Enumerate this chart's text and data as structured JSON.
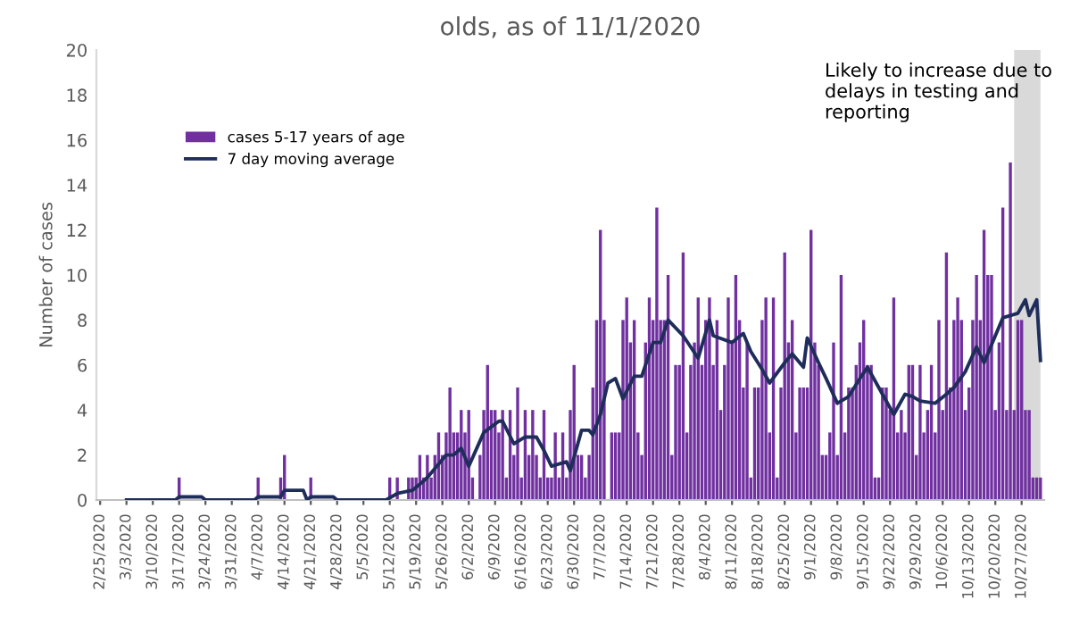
{
  "chart_data": {
    "type": "bar",
    "title": "olds, as of 11/1/2020",
    "ylabel": "Number of cases",
    "annotations": [
      "Likely to increase due to delays in testing and reporting"
    ],
    "x": [
      "2020-02-25",
      "2020-02-26",
      "2020-02-27",
      "2020-02-28",
      "2020-02-29",
      "2020-03-01",
      "2020-03-02",
      "2020-03-03",
      "2020-03-04",
      "2020-03-05",
      "2020-03-06",
      "2020-03-07",
      "2020-03-08",
      "2020-03-09",
      "2020-03-10",
      "2020-03-11",
      "2020-03-12",
      "2020-03-13",
      "2020-03-14",
      "2020-03-15",
      "2020-03-16",
      "2020-03-17",
      "2020-03-18",
      "2020-03-19",
      "2020-03-20",
      "2020-03-21",
      "2020-03-22",
      "2020-03-23",
      "2020-03-24",
      "2020-03-25",
      "2020-03-26",
      "2020-03-27",
      "2020-03-28",
      "2020-03-29",
      "2020-03-30",
      "2020-03-31",
      "2020-04-01",
      "2020-04-02",
      "2020-04-03",
      "2020-04-04",
      "2020-04-05",
      "2020-04-06",
      "2020-04-07",
      "2020-04-08",
      "2020-04-09",
      "2020-04-10",
      "2020-04-11",
      "2020-04-12",
      "2020-04-13",
      "2020-04-14",
      "2020-04-15",
      "2020-04-16",
      "2020-04-17",
      "2020-04-18",
      "2020-04-19",
      "2020-04-20",
      "2020-04-21",
      "2020-04-22",
      "2020-04-23",
      "2020-04-24",
      "2020-04-25",
      "2020-04-26",
      "2020-04-27",
      "2020-04-28",
      "2020-04-29",
      "2020-04-30",
      "2020-05-01",
      "2020-05-02",
      "2020-05-03",
      "2020-05-04",
      "2020-05-05",
      "2020-05-06",
      "2020-05-07",
      "2020-05-08",
      "2020-05-09",
      "2020-05-10",
      "2020-05-11",
      "2020-05-12",
      "2020-05-13",
      "2020-05-14",
      "2020-05-15",
      "2020-05-16",
      "2020-05-17",
      "2020-05-18",
      "2020-05-19",
      "2020-05-20",
      "2020-05-21",
      "2020-05-22",
      "2020-05-23",
      "2020-05-24",
      "2020-05-25",
      "2020-05-26",
      "2020-05-27",
      "2020-05-28",
      "2020-05-29",
      "2020-05-30",
      "2020-05-31",
      "2020-06-01",
      "2020-06-02",
      "2020-06-03",
      "2020-06-04",
      "2020-06-05",
      "2020-06-06",
      "2020-06-07",
      "2020-06-08",
      "2020-06-09",
      "2020-06-10",
      "2020-06-11",
      "2020-06-12",
      "2020-06-13",
      "2020-06-14",
      "2020-06-15",
      "2020-06-16",
      "2020-06-17",
      "2020-06-18",
      "2020-06-19",
      "2020-06-20",
      "2020-06-21",
      "2020-06-22",
      "2020-06-23",
      "2020-06-24",
      "2020-06-25",
      "2020-06-26",
      "2020-06-27",
      "2020-06-28",
      "2020-06-29",
      "2020-06-30",
      "2020-07-01",
      "2020-07-02",
      "2020-07-03",
      "2020-07-04",
      "2020-07-05",
      "2020-07-06",
      "2020-07-07",
      "2020-07-08",
      "2020-07-09",
      "2020-07-10",
      "2020-07-11",
      "2020-07-12",
      "2020-07-13",
      "2020-07-14",
      "2020-07-15",
      "2020-07-16",
      "2020-07-17",
      "2020-07-18",
      "2020-07-19",
      "2020-07-20",
      "2020-07-21",
      "2020-07-22",
      "2020-07-23",
      "2020-07-24",
      "2020-07-25",
      "2020-07-26",
      "2020-07-27",
      "2020-07-28",
      "2020-07-29",
      "2020-07-30",
      "2020-07-31",
      "2020-08-01",
      "2020-08-02",
      "2020-08-03",
      "2020-08-04",
      "2020-08-05",
      "2020-08-06",
      "2020-08-07",
      "2020-08-08",
      "2020-08-09",
      "2020-08-10",
      "2020-08-11",
      "2020-08-12",
      "2020-08-13",
      "2020-08-14",
      "2020-08-15",
      "2020-08-16",
      "2020-08-17",
      "2020-08-18",
      "2020-08-19",
      "2020-08-20",
      "2020-08-21",
      "2020-08-22",
      "2020-08-23",
      "2020-08-24",
      "2020-08-25",
      "2020-08-26",
      "2020-08-27",
      "2020-08-28",
      "2020-08-29",
      "2020-08-30",
      "2020-08-31",
      "2020-09-01",
      "2020-09-02",
      "2020-09-03",
      "2020-09-04",
      "2020-09-05",
      "2020-09-06",
      "2020-09-07",
      "2020-09-08",
      "2020-09-09",
      "2020-09-10",
      "2020-09-11",
      "2020-09-12",
      "2020-09-13",
      "2020-09-14",
      "2020-09-15",
      "2020-09-16",
      "2020-09-17",
      "2020-09-18",
      "2020-09-19",
      "2020-09-20",
      "2020-09-21",
      "2020-09-22",
      "2020-09-23",
      "2020-09-24",
      "2020-09-25",
      "2020-09-26",
      "2020-09-27",
      "2020-09-28",
      "2020-09-29",
      "2020-09-30",
      "2020-10-01",
      "2020-10-02",
      "2020-10-03",
      "2020-10-04",
      "2020-10-05",
      "2020-10-06",
      "2020-10-07",
      "2020-10-08",
      "2020-10-09",
      "2020-10-10",
      "2020-10-11",
      "2020-10-12",
      "2020-10-13",
      "2020-10-14",
      "2020-10-15",
      "2020-10-16",
      "2020-10-17",
      "2020-10-18",
      "2020-10-19",
      "2020-10-20",
      "2020-10-21",
      "2020-10-22",
      "2020-10-23",
      "2020-10-24",
      "2020-10-25",
      "2020-10-26",
      "2020-10-27",
      "2020-10-28",
      "2020-10-29",
      "2020-10-30",
      "2020-10-31",
      "2020-11-01"
    ],
    "series": [
      {
        "name": "cases 5-17 years of age",
        "color": "#7030a0",
        "values": [
          0,
          0,
          0,
          0,
          0,
          0,
          0,
          0,
          0,
          0,
          0,
          0,
          0,
          0,
          0,
          0,
          0,
          0,
          0,
          0,
          0,
          1,
          0,
          0,
          0,
          0,
          0,
          0,
          0,
          0,
          0,
          0,
          0,
          0,
          0,
          0,
          0,
          0,
          0,
          0,
          0,
          0,
          1,
          0,
          0,
          0,
          0,
          0,
          1,
          2,
          0,
          0,
          0,
          0,
          0,
          0,
          1,
          0,
          0,
          0,
          0,
          0,
          0,
          0,
          0,
          0,
          0,
          0,
          0,
          0,
          0,
          0,
          0,
          0,
          0,
          0,
          0,
          1,
          0,
          1,
          0,
          0,
          1,
          1,
          1,
          2,
          1,
          2,
          1,
          2,
          3,
          2,
          3,
          5,
          3,
          3,
          4,
          3,
          4,
          1,
          0,
          2,
          4,
          6,
          4,
          4,
          3,
          4,
          1,
          4,
          2,
          5,
          1,
          4,
          2,
          4,
          2,
          1,
          4,
          1,
          1,
          3,
          1,
          3,
          1,
          4,
          6,
          2,
          2,
          1,
          2,
          5,
          8,
          12,
          8,
          0,
          3,
          3,
          3,
          8,
          9,
          7,
          8,
          3,
          2,
          7,
          9,
          8,
          13,
          8,
          8,
          10,
          2,
          6,
          6,
          11,
          3,
          6,
          7,
          9,
          6,
          8,
          9,
          6,
          8,
          4,
          6,
          9,
          7,
          10,
          8,
          5,
          7,
          1,
          5,
          5,
          8,
          9,
          3,
          9,
          1,
          5,
          11,
          7,
          8,
          3,
          5,
          5,
          5,
          12,
          7,
          6,
          2,
          2,
          3,
          7,
          2,
          10,
          3,
          5,
          5,
          6,
          7,
          8,
          6,
          6,
          1,
          1,
          5,
          5,
          4,
          9,
          3,
          4,
          3,
          6,
          6,
          2,
          6,
          3,
          4,
          6,
          3,
          8,
          4,
          11,
          5,
          8,
          9,
          8,
          4,
          5,
          8,
          10,
          8,
          12,
          10,
          10,
          4,
          7,
          13,
          4,
          15,
          4,
          8,
          8,
          4,
          4,
          1,
          1,
          1
        ]
      },
      {
        "name": "7 day moving average",
        "type": "line",
        "color": "#1f2d5a",
        "x": [
          "2020-03-03",
          "2020-03-16",
          "2020-03-17",
          "2020-03-23",
          "2020-03-24",
          "2020-04-06",
          "2020-04-07",
          "2020-04-13",
          "2020-04-14",
          "2020-04-19",
          "2020-04-20",
          "2020-04-21",
          "2020-04-27",
          "2020-04-28",
          "2020-05-11",
          "2020-05-14",
          "2020-05-18",
          "2020-05-20",
          "2020-05-22",
          "2020-05-24",
          "2020-05-27",
          "2020-05-29",
          "2020-05-31",
          "2020-06-02",
          "2020-06-06",
          "2020-06-10",
          "2020-06-11",
          "2020-06-14",
          "2020-06-17",
          "2020-06-20",
          "2020-06-22",
          "2020-06-24",
          "2020-06-28",
          "2020-06-29",
          "2020-07-02",
          "2020-07-04",
          "2020-07-05",
          "2020-07-07",
          "2020-07-09",
          "2020-07-11",
          "2020-07-13",
          "2020-07-16",
          "2020-07-18",
          "2020-07-21",
          "2020-07-23",
          "2020-07-25",
          "2020-07-29",
          "2020-08-02",
          "2020-08-05",
          "2020-08-06",
          "2020-08-11",
          "2020-08-14",
          "2020-08-16",
          "2020-08-19",
          "2020-08-21",
          "2020-08-25",
          "2020-08-27",
          "2020-08-30",
          "2020-08-31",
          "2020-09-03",
          "2020-09-05",
          "2020-09-08",
          "2020-09-11",
          "2020-09-14",
          "2020-09-16",
          "2020-09-19",
          "2020-09-23",
          "2020-09-26",
          "2020-09-28",
          "2020-09-30",
          "2020-10-04",
          "2020-10-07",
          "2020-10-09",
          "2020-10-12",
          "2020-10-15",
          "2020-10-17",
          "2020-10-20",
          "2020-10-22",
          "2020-10-26",
          "2020-10-28",
          "2020-10-29",
          "2020-10-31",
          "2020-11-01"
        ],
        "values": [
          0,
          0,
          0.14,
          0.14,
          0,
          0,
          0.14,
          0.14,
          0.43,
          0.43,
          0,
          0.14,
          0.14,
          0,
          0,
          0.29,
          0.43,
          0.7,
          1,
          1.4,
          2,
          2,
          2.3,
          1.5,
          3,
          3.5,
          3.5,
          2.5,
          2.8,
          2.8,
          2.2,
          1.5,
          1.7,
          1.3,
          3.1,
          3.1,
          2.9,
          3.8,
          5.2,
          5.4,
          4.5,
          5.5,
          5.5,
          7,
          7,
          8,
          7.3,
          6.3,
          8,
          7.3,
          7,
          7.4,
          6.6,
          5.8,
          5.2,
          6.1,
          6.5,
          5.9,
          7.2,
          6.1,
          5.4,
          4.3,
          4.6,
          5.4,
          5.9,
          5,
          3.8,
          4.7,
          4.6,
          4.4,
          4.3,
          4.7,
          5,
          5.7,
          6.8,
          6.1,
          7.3,
          8.1,
          8.3,
          8.9,
          8.2,
          8.9,
          6.2
        ]
      }
    ],
    "ylim": [
      0,
      20
    ],
    "yticks": [
      0,
      2,
      4,
      6,
      8,
      10,
      12,
      14,
      16,
      18,
      20
    ],
    "xlim": [
      "2020-02-24",
      "2020-11-02"
    ],
    "xticks": [
      {
        "value": "2020-02-25",
        "label": "2/25/2020"
      },
      {
        "value": "2020-03-03",
        "label": "3/3/2020"
      },
      {
        "value": "2020-03-10",
        "label": "3/10/2020"
      },
      {
        "value": "2020-03-17",
        "label": "3/17/2020"
      },
      {
        "value": "2020-03-24",
        "label": "3/24/2020"
      },
      {
        "value": "2020-03-31",
        "label": "3/31/2020"
      },
      {
        "value": "2020-04-07",
        "label": "4/7/2020"
      },
      {
        "value": "2020-04-14",
        "label": "4/14/2020"
      },
      {
        "value": "2020-04-21",
        "label": "4/21/2020"
      },
      {
        "value": "2020-04-28",
        "label": "4/28/2020"
      },
      {
        "value": "2020-05-05",
        "label": "5/5/2020"
      },
      {
        "value": "2020-05-12",
        "label": "5/12/2020"
      },
      {
        "value": "2020-05-19",
        "label": "5/19/2020"
      },
      {
        "value": "2020-05-26",
        "label": "5/26/2020"
      },
      {
        "value": "2020-06-02",
        "label": "6/2/2020"
      },
      {
        "value": "2020-06-09",
        "label": "6/9/2020"
      },
      {
        "value": "2020-06-16",
        "label": "6/16/2020"
      },
      {
        "value": "2020-06-23",
        "label": "6/23/2020"
      },
      {
        "value": "2020-06-30",
        "label": "6/30/2020"
      },
      {
        "value": "2020-07-07",
        "label": "7/7/2020"
      },
      {
        "value": "2020-07-14",
        "label": "7/14/2020"
      },
      {
        "value": "2020-07-21",
        "label": "7/21/2020"
      },
      {
        "value": "2020-07-28",
        "label": "7/28/2020"
      },
      {
        "value": "2020-08-04",
        "label": "8/4/2020"
      },
      {
        "value": "2020-08-11",
        "label": "8/11/2020"
      },
      {
        "value": "2020-08-18",
        "label": "8/18/2020"
      },
      {
        "value": "2020-08-25",
        "label": "8/25/2020"
      },
      {
        "value": "2020-09-01",
        "label": "9/1/2020"
      },
      {
        "value": "2020-09-08",
        "label": "9/8/2020"
      },
      {
        "value": "2020-09-15",
        "label": "9/15/2020"
      },
      {
        "value": "2020-09-22",
        "label": "9/22/2020"
      },
      {
        "value": "2020-09-29",
        "label": "9/29/2020"
      },
      {
        "value": "2020-10-06",
        "label": "10/6/2020"
      },
      {
        "value": "2020-10-13",
        "label": "10/13/2020"
      },
      {
        "value": "2020-10-20",
        "label": "10/20/2020"
      },
      {
        "value": "2020-10-27",
        "label": "10/27/2020"
      }
    ],
    "bands": [
      {
        "axis": "x",
        "from": "2020-10-25",
        "to": "2020-11-01",
        "color": "#d9d9d9"
      }
    ],
    "grid": false,
    "legend": "top left"
  }
}
